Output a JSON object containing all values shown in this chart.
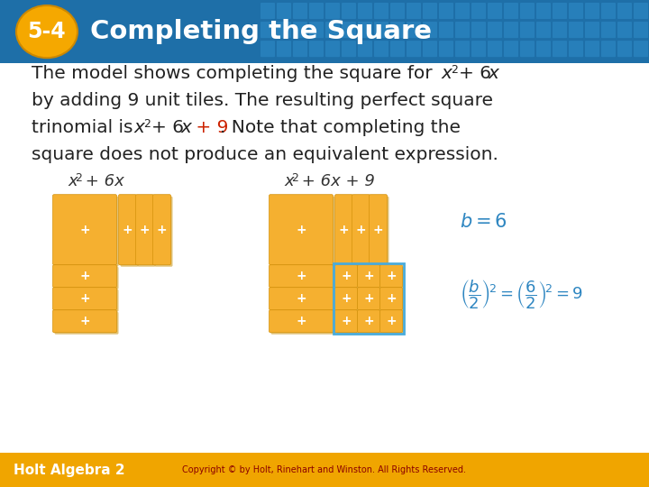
{
  "title_text": "Completing the Square",
  "title_number": "5-4",
  "header_bg_left": "#1E6FA8",
  "header_bg_right": "#2B8FD0",
  "header_tile_color": "#3A9FDE",
  "title_number_bg": "#F5A800",
  "title_text_color": "#FFFFFF",
  "body_bg_color": "#FFFFFF",
  "tile_color": "#F5B030",
  "tile_dark": "#C8900A",
  "tile_border_highlight": "#4AABDB",
  "text_color": "#222222",
  "red_color": "#CC2200",
  "blue_color": "#2E86C1",
  "footer_bg": "#F0A500",
  "footer_text": "Holt Algebra 2",
  "footer_copyright": "Copyright © by Holt, Rinehart and Winston. All Rights Reserved."
}
